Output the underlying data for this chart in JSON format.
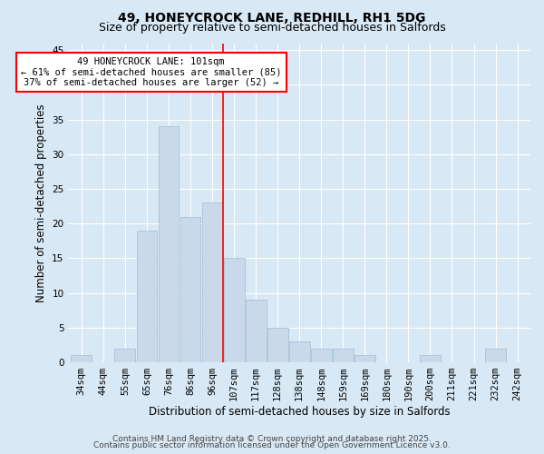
{
  "title1": "49, HONEYCROCK LANE, REDHILL, RH1 5DG",
  "title2": "Size of property relative to semi-detached houses in Salfords",
  "xlabel": "Distribution of semi-detached houses by size in Salfords",
  "ylabel": "Number of semi-detached properties",
  "categories": [
    "34sqm",
    "44sqm",
    "55sqm",
    "65sqm",
    "76sqm",
    "86sqm",
    "96sqm",
    "107sqm",
    "117sqm",
    "128sqm",
    "138sqm",
    "148sqm",
    "159sqm",
    "169sqm",
    "180sqm",
    "190sqm",
    "200sqm",
    "211sqm",
    "221sqm",
    "232sqm",
    "242sqm"
  ],
  "values": [
    1,
    0,
    2,
    19,
    34,
    21,
    23,
    15,
    9,
    5,
    3,
    2,
    2,
    1,
    0,
    0,
    1,
    0,
    0,
    2,
    0
  ],
  "vline_pos": 6.5,
  "bar_color": "#c9d9ea",
  "bar_edgecolor": "#a8c4d8",
  "vline_color": "red",
  "annotation_text": "49 HONEYCROCK LANE: 101sqm\n← 61% of semi-detached houses are smaller (85)\n37% of semi-detached houses are larger (52) →",
  "annotation_box_facecolor": "white",
  "annotation_box_edgecolor": "red",
  "ylim": [
    0,
    46
  ],
  "yticks": [
    0,
    5,
    10,
    15,
    20,
    25,
    30,
    35,
    40,
    45
  ],
  "footer1": "Contains HM Land Registry data © Crown copyright and database right 2025.",
  "footer2": "Contains public sector information licensed under the Open Government Licence v3.0.",
  "bg_color": "#d8e8f4",
  "plot_bg_color": "#d8e8f4",
  "title_fontsize": 10,
  "subtitle_fontsize": 9,
  "axis_label_fontsize": 8.5,
  "tick_fontsize": 7.5,
  "annotation_fontsize": 7.5,
  "footer_fontsize": 6.5,
  "grid_color": "white",
  "grid_linewidth": 0.8
}
